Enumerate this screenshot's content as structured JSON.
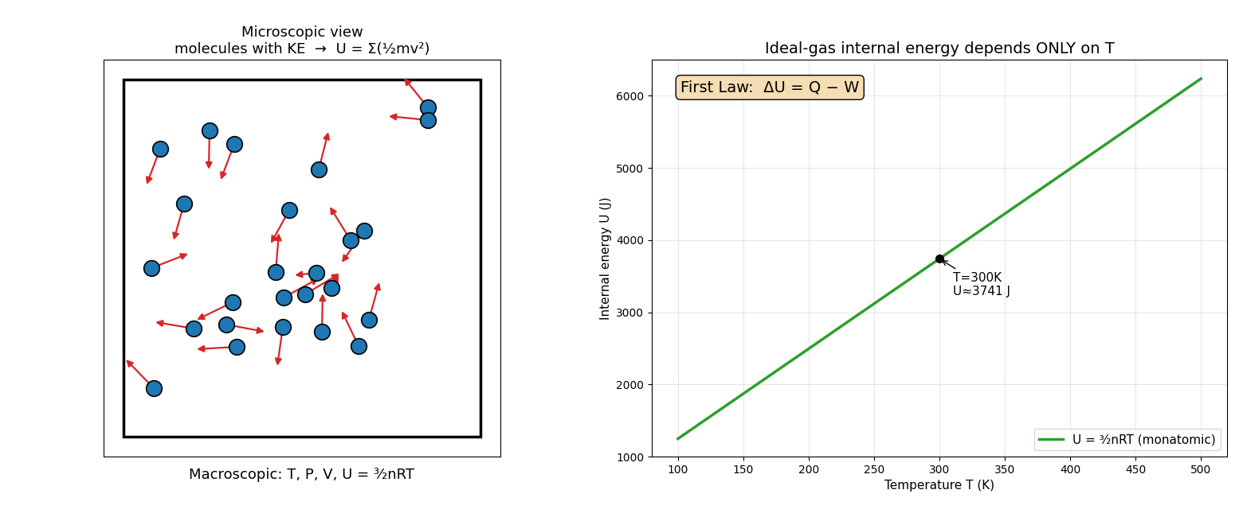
{
  "diagram": {
    "title": "Microscopic view\nmolecules with KE  →  U = Σ(½mv²)",
    "caption": "Macroscopic: T, P, V, U = ³⁄₂nRT"
  },
  "chart_data": {
    "type": "line",
    "title": "Ideal-gas internal energy depends ONLY on T",
    "x_label": "Temperature T (K)",
    "y_label": "Internal energy U (J)",
    "x": [
      100,
      150,
      200,
      250,
      300,
      350,
      400,
      450,
      500
    ],
    "series": [
      {
        "name": "U = ³⁄₂nRT (monatomic)",
        "color": "#2ca02c",
        "values": [
          1247,
          1871,
          2494,
          3118,
          3741,
          4365,
          4988,
          5612,
          6236
        ]
      }
    ],
    "xlim": [
      80,
      520
    ],
    "xticks": [
      100,
      150,
      200,
      250,
      300,
      350,
      400,
      450,
      500
    ],
    "ylim": [
      1000,
      6500
    ],
    "yticks": [
      1000,
      2000,
      3000,
      4000,
      5000,
      6000
    ],
    "grid": true,
    "legend": "lower right",
    "annotations": [
      {
        "x": 300,
        "y": 3741,
        "text": "T=300K\nU≈3741 J"
      }
    ],
    "text_box": "First Law:  ΔU = Q − W"
  }
}
